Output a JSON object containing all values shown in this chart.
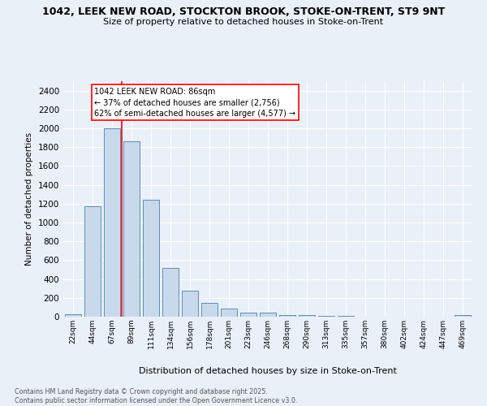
{
  "title1": "1042, LEEK NEW ROAD, STOCKTON BROOK, STOKE-ON-TRENT, ST9 9NT",
  "title2": "Size of property relative to detached houses in Stoke-on-Trent",
  "xlabel": "Distribution of detached houses by size in Stoke-on-Trent",
  "ylabel": "Number of detached properties",
  "bin_labels": [
    "22sqm",
    "44sqm",
    "67sqm",
    "89sqm",
    "111sqm",
    "134sqm",
    "156sqm",
    "178sqm",
    "201sqm",
    "223sqm",
    "246sqm",
    "268sqm",
    "290sqm",
    "313sqm",
    "335sqm",
    "357sqm",
    "380sqm",
    "402sqm",
    "424sqm",
    "447sqm",
    "469sqm"
  ],
  "bar_values": [
    25,
    1170,
    2000,
    1860,
    1245,
    520,
    275,
    150,
    90,
    45,
    40,
    20,
    15,
    10,
    5,
    3,
    2,
    1,
    1,
    1,
    15
  ],
  "bar_color": "#c9d9ec",
  "bar_edge_color": "#5b8db8",
  "vline_color": "red",
  "annotation_text": "1042 LEEK NEW ROAD: 86sqm\n← 37% of detached houses are smaller (2,756)\n62% of semi-detached houses are larger (4,577) →",
  "annotation_box_color": "white",
  "annotation_box_edge": "red",
  "footer": "Contains HM Land Registry data © Crown copyright and database right 2025.\nContains public sector information licensed under the Open Government Licence v3.0.",
  "ylim": [
    0,
    2500
  ],
  "yticks": [
    0,
    200,
    400,
    600,
    800,
    1000,
    1200,
    1400,
    1600,
    1800,
    2000,
    2200,
    2400
  ],
  "bg_color": "#eaf0f8",
  "plot_bg_color": "#eaf0f8"
}
